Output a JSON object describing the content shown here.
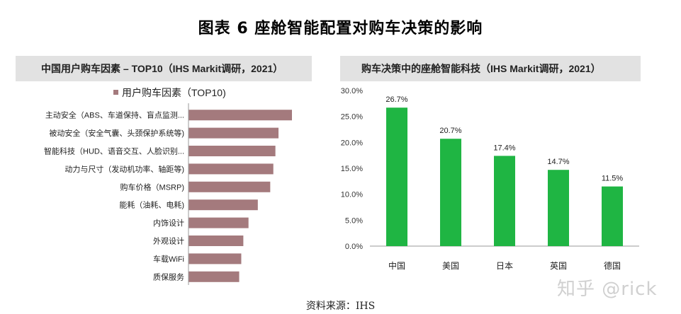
{
  "figure_title": "图表 6 座舱智能配置对购车决策的影响",
  "source": "资料来源：IHS",
  "watermark": "知乎 @rick",
  "colors": {
    "left_bar": "#a47a7d",
    "right_bar": "#1fb543"
  },
  "chart_data": [
    {
      "type": "bar",
      "orientation": "horizontal",
      "title": "中国用户购车因素 – TOP10（IHS Markit调研，2021）",
      "legend": {
        "label": "用户购车因素（TOP10)",
        "placement": "top-left"
      },
      "categories": [
        "主动安全（ABS、车道保持、盲点监测...",
        "被动安全（安全气囊、头颈保护系统等)",
        "智能科技（HUD、语音交互、人脸识别...",
        "动力与尺寸（发动机功率、轴距等)",
        "购车价格（MSRP)",
        "能耗（油耗、电耗)",
        "内饰设计",
        "外观设计",
        "车载WiFi",
        "质保服务"
      ],
      "values": [
        100,
        87,
        84,
        82,
        79,
        67,
        58,
        53,
        51,
        49
      ],
      "xlim": [
        0,
        100
      ],
      "axis_labels_shown": false
    },
    {
      "type": "bar",
      "title": "购车决策中的座舱智能科技（IHS Markit调研，2021）",
      "categories": [
        "中国",
        "美国",
        "日本",
        "英国",
        "德国"
      ],
      "values": [
        26.7,
        20.7,
        17.4,
        14.7,
        11.5
      ],
      "data_labels": [
        "26.7%",
        "20.7%",
        "17.4%",
        "14.7%",
        "11.5%"
      ],
      "ylim": [
        0,
        30
      ],
      "yticks": [
        "0.0%",
        "5.0%",
        "10.0%",
        "15.0%",
        "20.0%",
        "25.0%",
        "30.0%"
      ],
      "grid": false
    }
  ]
}
